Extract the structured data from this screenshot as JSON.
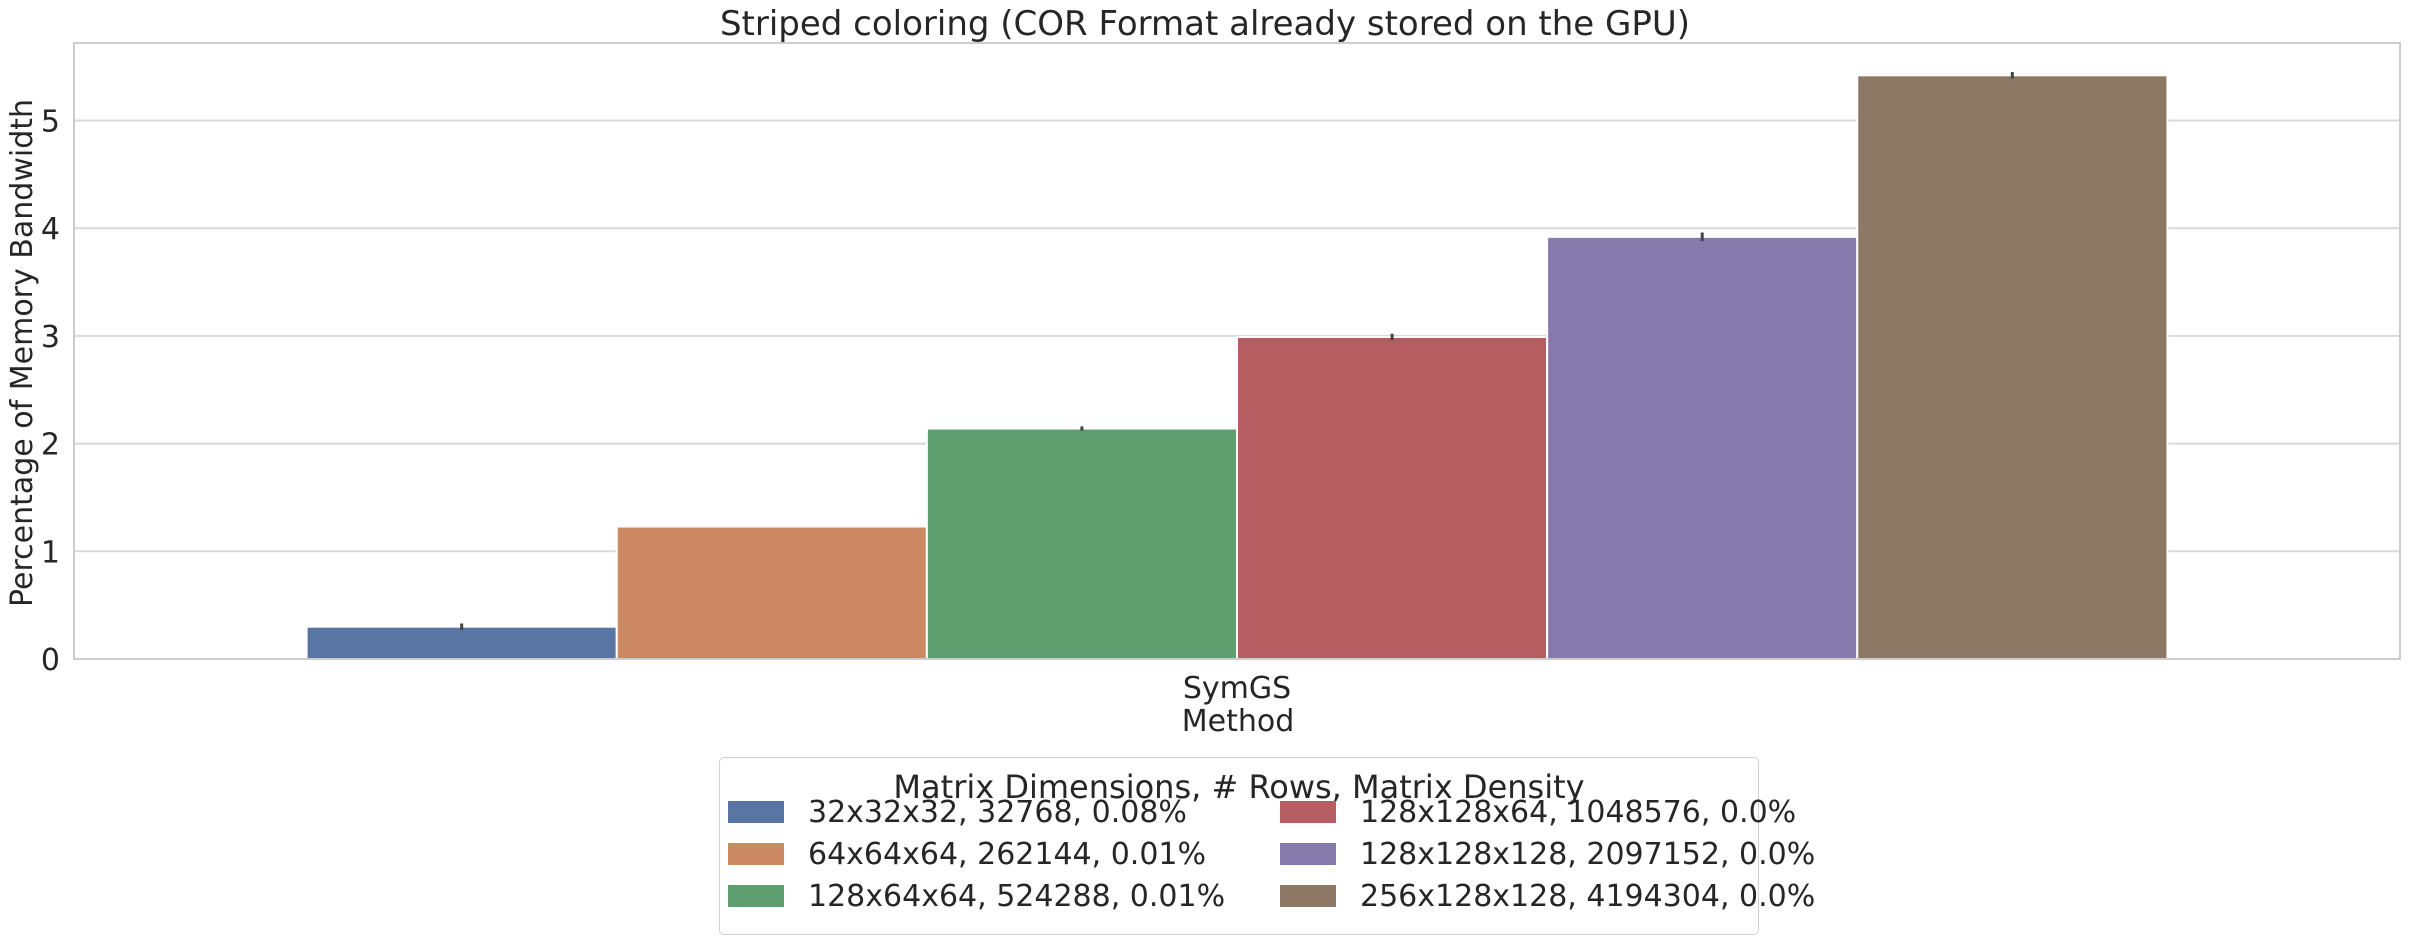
{
  "chart_data": {
    "type": "bar",
    "title": "Striped coloring (COR Format already stored on the GPU)",
    "xlabel": "Method",
    "ylabel": "Percentage of Memory Bandwidth",
    "categories": [
      "SymGS"
    ],
    "ylim": [
      0,
      5.72
    ],
    "yticks": [
      0,
      1,
      2,
      3,
      4,
      5
    ],
    "grid": true,
    "legend_title": "Matrix Dimensions, # Rows, Matrix Density",
    "legend_position": "bottom-center",
    "series": [
      {
        "name": "32x32x32, 32768, 0.08%",
        "values": [
          0.3
        ],
        "error": [
          0.03
        ],
        "color": "#5875a4"
      },
      {
        "name": "64x64x64, 262144, 0.01%",
        "values": [
          1.23
        ],
        "error": [
          0.0
        ],
        "color": "#cc8963"
      },
      {
        "name": "128x64x64, 524288, 0.01%",
        "values": [
          2.14
        ],
        "error": [
          0.02
        ],
        "color": "#5f9e6e"
      },
      {
        "name": "128x128x64, 1048576, 0.0%",
        "values": [
          2.99
        ],
        "error": [
          0.03
        ],
        "color": "#b55d60"
      },
      {
        "name": "128x128x128, 2097152, 0.0%",
        "values": [
          3.92
        ],
        "error": [
          0.04
        ],
        "color": "#857aab"
      },
      {
        "name": "256x128x128, 4194304, 0.0%",
        "values": [
          5.42
        ],
        "error": [
          0.03
        ],
        "color": "#8d7866"
      }
    ]
  }
}
